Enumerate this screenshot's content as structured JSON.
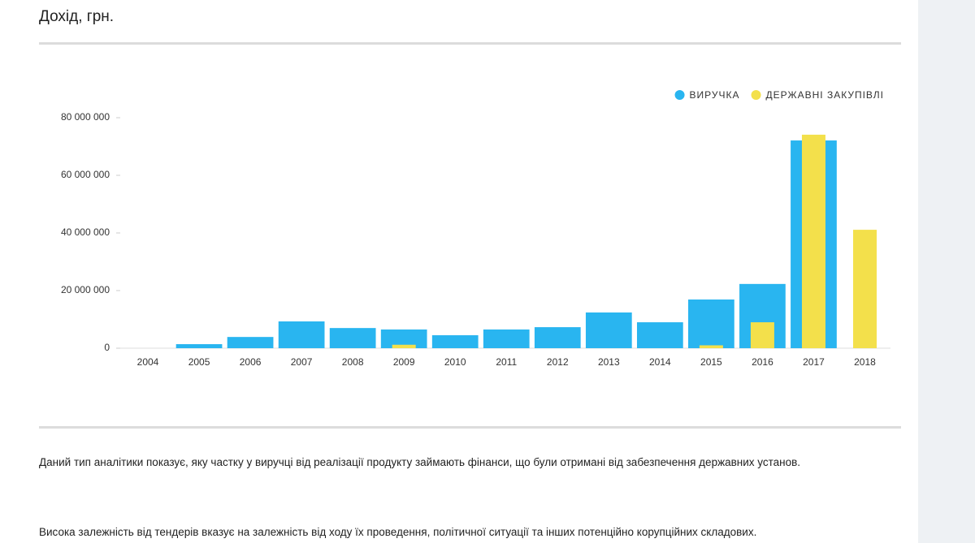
{
  "header": {
    "title": "Дохід, грн."
  },
  "chart_data": {
    "type": "bar",
    "categories": [
      "2004",
      "2005",
      "2006",
      "2007",
      "2008",
      "2009",
      "2010",
      "2011",
      "2012",
      "2013",
      "2014",
      "2015",
      "2016",
      "2017",
      "2018"
    ],
    "series": [
      {
        "name": "ВИРУЧКА",
        "color": "#29b5f0",
        "values": [
          0,
          1400000,
          3900000,
          9300000,
          7000000,
          6500000,
          4500000,
          6500000,
          7300000,
          12400000,
          9000000,
          16900000,
          22300000,
          72100000,
          0
        ]
      },
      {
        "name": "ДЕРЖАВНІ ЗАКУПІВЛІ",
        "color": "#f3e04b",
        "values": [
          0,
          0,
          0,
          0,
          0,
          1200000,
          0,
          0,
          0,
          0,
          0,
          1000000,
          9000000,
          74100000,
          41100000
        ]
      }
    ],
    "ylim": [
      0,
      80000000
    ],
    "yticks": [
      0,
      {
        "value": 20000000,
        "label": "20 000 000"
      },
      {
        "value": 40000000,
        "label": "40 000 000"
      },
      {
        "value": 60000000,
        "label": "60 000 000"
      },
      {
        "value": 80000000,
        "label": "80 000 000"
      }
    ],
    "legend": "top-right",
    "grid": false
  },
  "text": {
    "paragraphs": [
      "Даний тип аналітики показує, яку частку у виручці від реалізації продукту займають фінанси, що були отримані від забезпечення державних установ.",
      "Висока залежність від тендерів вказує на залежність від ходу їх проведення, політичної ситуації та інших потенційно корупційних складових."
    ]
  }
}
